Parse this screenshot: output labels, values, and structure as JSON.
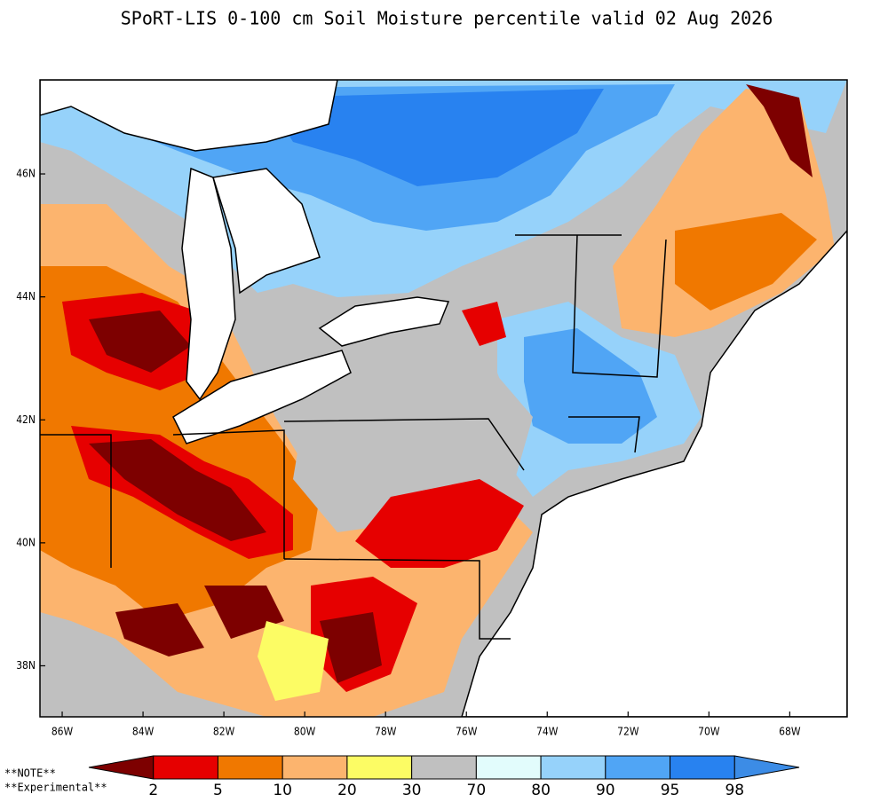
{
  "title": "SPoRT-LIS 0-100 cm Soil Moisture percentile valid 02 Aug 2026",
  "map": {
    "lonlim": [
      -86.55,
      -66.58
    ],
    "latlim": [
      37.17,
      47.53
    ],
    "lon_ticks": [
      {
        "value": -86,
        "label": "86W"
      },
      {
        "value": -84,
        "label": "84W"
      },
      {
        "value": -82,
        "label": "82W"
      },
      {
        "value": -80,
        "label": "80W"
      },
      {
        "value": -78,
        "label": "78W"
      },
      {
        "value": -76,
        "label": "76W"
      },
      {
        "value": -74,
        "label": "74W"
      },
      {
        "value": -72,
        "label": "72W"
      },
      {
        "value": -70,
        "label": "70W"
      },
      {
        "value": -68,
        "label": "68W"
      }
    ],
    "lat_ticks": [
      {
        "value": 38,
        "label": "38N"
      },
      {
        "value": 40,
        "label": "40N"
      },
      {
        "value": 42,
        "label": "42N"
      },
      {
        "value": 44,
        "label": "44N"
      },
      {
        "value": 46,
        "label": "46N"
      }
    ]
  },
  "colorbar": {
    "colors": [
      "#7d0000",
      "#e60000",
      "#f07800",
      "#fcb46e",
      "#fcfc64",
      "#c0c0c0",
      "#e2fcfc",
      "#96d2fa",
      "#50a5f5",
      "#2882f0",
      "#3c8ce6"
    ],
    "labels": [
      2,
      5,
      10,
      20,
      30,
      70,
      80,
      90,
      95,
      98
    ]
  },
  "notes": [
    "**NOTE**",
    "**Experimental**"
  ]
}
